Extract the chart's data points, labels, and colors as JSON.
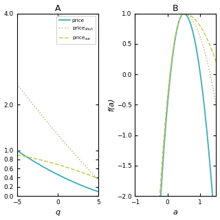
{
  "panel_A": {
    "title": "A",
    "xlabel": "q",
    "xlim": [
      -5,
      5
    ],
    "ylim": [
      0,
      4
    ],
    "yticks": [
      0,
      0.2,
      0.4,
      0.6,
      0.8,
      1.0,
      2.0,
      4.0
    ],
    "xticks": [
      -5,
      0,
      5
    ]
  },
  "panel_B": {
    "title": "B",
    "xlabel": "a",
    "ylabel": "f(a)",
    "xlim": [
      -1,
      1.5
    ],
    "ylim": [
      -2,
      1
    ],
    "yticks": [
      -2.0,
      -1.5,
      -1.0,
      -0.5,
      0.0,
      0.5,
      1.0
    ],
    "xticks": [
      -1,
      0,
      1
    ]
  },
  "color_price": "#3AABB8",
  "color_shut": "#C8B080",
  "color_sur": "#C8C850",
  "bg_color": "#FFFFFF"
}
